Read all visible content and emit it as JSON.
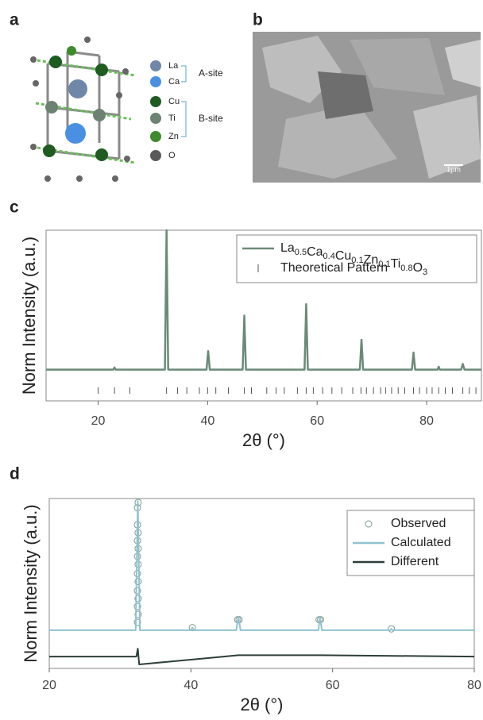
{
  "panels": {
    "a": {
      "label": "a",
      "atoms": [
        {
          "label": "La",
          "color": "#6f87a8"
        },
        {
          "label": "Ca",
          "color": "#4a90e2"
        },
        {
          "label": "Cu",
          "color": "#1f5c22"
        },
        {
          "label": "Ti",
          "color": "#6c8272"
        },
        {
          "label": "Zn",
          "color": "#3d8b2c"
        },
        {
          "label": "O",
          "color": "#5a5a5a"
        }
      ],
      "groups": [
        "A-site",
        "B-site"
      ]
    },
    "b": {
      "label": "b",
      "scale_bar": "1μm"
    }
  },
  "chart_data": [
    {
      "label": "c",
      "type": "line",
      "xlabel": "2θ (°)",
      "ylabel": "Norm Intensity (a.u.)",
      "xlim": [
        10.5,
        90
      ],
      "ylim": [
        -0.2,
        1.0
      ],
      "xticks": [
        20,
        40,
        60,
        80
      ],
      "legend": "upper right",
      "series": [
        {
          "name": "La0.5Ca0.4Cu0.1Zn0.1Ti0.8O3",
          "type": "line",
          "color": "#6b8a78",
          "x": [
            10.5,
            20,
            22.8,
            23,
            23.2,
            30,
            32.2,
            32.5,
            32.8,
            39.8,
            40.1,
            40.4,
            46.4,
            46.7,
            47,
            57.7,
            58,
            58.3,
            67.8,
            68.1,
            68.4,
            77.3,
            77.6,
            77.9,
            82,
            82.2,
            82.4,
            86.3,
            86.6,
            86.9,
            90
          ],
          "values": [
            0.02,
            0.02,
            0.02,
            0.035,
            0.02,
            0.02,
            0.02,
            1.0,
            0.02,
            0.02,
            0.15,
            0.02,
            0.02,
            0.4,
            0.02,
            0.02,
            0.48,
            0.02,
            0.02,
            0.23,
            0.02,
            0.02,
            0.14,
            0.02,
            0.02,
            0.04,
            0.02,
            0.02,
            0.06,
            0.02,
            0.02
          ]
        },
        {
          "name": "Theoretical Pattern",
          "type": "tick",
          "color": "#555555",
          "x": [
            20,
            23,
            25.8,
            32.5,
            34.5,
            36.2,
            38.5,
            40,
            41.5,
            43.8,
            46.7,
            48,
            50.8,
            52.5,
            54,
            56.4,
            58,
            59.3,
            61,
            62.7,
            64.5,
            66.5,
            68,
            69,
            70.3,
            71.6,
            72.5,
            73.6,
            74.8,
            76,
            77.6,
            78.7,
            80,
            81,
            82.2,
            83.4,
            84.7,
            86.6,
            87.8,
            89
          ]
        }
      ]
    },
    {
      "label": "d",
      "type": "line",
      "xlabel": "2θ (°)",
      "ylabel": "Norm Intensity (a.u.)",
      "xlim": [
        20,
        80
      ],
      "ylim": [
        -0.27,
        1.02
      ],
      "xticks": [
        20,
        40,
        60,
        80
      ],
      "legend": "upper right",
      "series": [
        {
          "name": "Observed",
          "type": "scatter",
          "color": "#7f9a8c",
          "x": [
            32.45,
            32.45,
            32.45,
            32.45,
            32.45,
            32.45,
            32.45,
            32.45,
            32.55,
            32.55,
            32.55,
            32.55,
            32.55,
            32.55,
            32.55,
            46.6,
            46.8,
            58.1,
            58.3,
            40.2,
            68.3
          ],
          "values": [
            0.08,
            0.2,
            0.32,
            0.45,
            0.58,
            0.7,
            0.82,
            0.95,
            0.14,
            0.26,
            0.39,
            0.52,
            0.64,
            0.76,
            0.99,
            0.1,
            0.1,
            0.1,
            0.1,
            0.04,
            0.03
          ]
        },
        {
          "name": "Calculated",
          "type": "line",
          "color": "#8fc3cf",
          "x": [
            20,
            32.2,
            32.5,
            32.8,
            40,
            40.2,
            40.4,
            46.4,
            46.7,
            47,
            58,
            58.2,
            58.5,
            68.1,
            68.3,
            68.5,
            80
          ],
          "values": [
            0.02,
            0.02,
            1.0,
            0.02,
            0.02,
            0.04,
            0.02,
            0.02,
            0.12,
            0.02,
            0.02,
            0.12,
            0.02,
            0.02,
            0.03,
            0.02,
            0.02
          ]
        },
        {
          "name": "Different",
          "type": "line",
          "color": "#2c3e3a",
          "x": [
            20,
            32.3,
            32.5,
            32.7,
            46.7,
            58.2,
            80
          ],
          "values": [
            -0.18,
            -0.18,
            -0.12,
            -0.24,
            -0.17,
            -0.17,
            -0.18
          ]
        }
      ]
    }
  ]
}
